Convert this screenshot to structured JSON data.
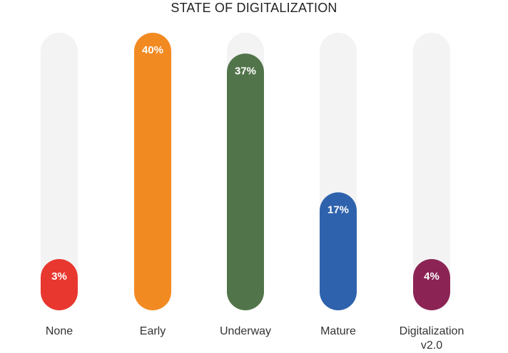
{
  "chart_data": {
    "type": "bar",
    "title": "STATE OF DIGITALIZATION",
    "categories": [
      "None",
      "Early",
      "Underway",
      "Mature",
      "Digitalization v2.0"
    ],
    "values": [
      3,
      40,
      37,
      17,
      4
    ],
    "value_labels": [
      "3%",
      "40%",
      "37%",
      "17%",
      "4%"
    ],
    "colors": [
      "#e8372f",
      "#f28a22",
      "#52744a",
      "#2e62ad",
      "#8b2455"
    ],
    "track_color": "#f3f3f3",
    "ylim": [
      0,
      40
    ],
    "grid": false,
    "legend": "none"
  }
}
